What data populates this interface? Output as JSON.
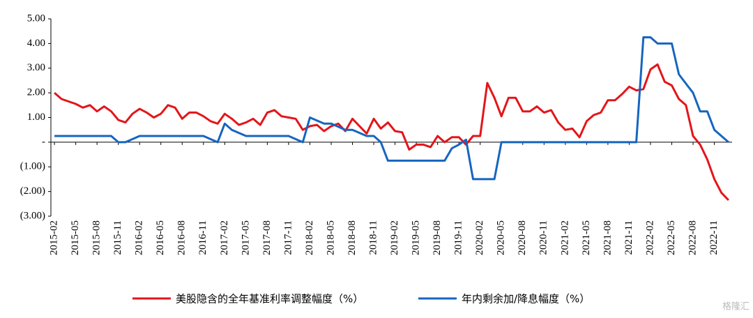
{
  "chart_data": {
    "type": "line",
    "categories": [
      "2015-02",
      null,
      null,
      "2015-05",
      null,
      null,
      "2015-08",
      null,
      null,
      "2015-11",
      null,
      null,
      "2016-02",
      null,
      null,
      "2016-05",
      null,
      null,
      "2016-08",
      null,
      null,
      "2016-11",
      null,
      null,
      "2017-02",
      null,
      null,
      "2017-05",
      null,
      null,
      "2017-08",
      null,
      null,
      "2017-11",
      null,
      null,
      "2018-02",
      null,
      null,
      "2018-05",
      null,
      null,
      "2018-08",
      null,
      null,
      "2018-11",
      null,
      null,
      "2019-02",
      null,
      null,
      "2019-05",
      null,
      null,
      "2019-08",
      null,
      null,
      "2019-11",
      null,
      null,
      "2020-02",
      null,
      null,
      "2020-05",
      null,
      null,
      "2020-08",
      null,
      null,
      "2020-11",
      null,
      null,
      "2021-02",
      null,
      null,
      "2021-05",
      null,
      null,
      "2021-08",
      null,
      null,
      "2021-11",
      null,
      null,
      "2022-02",
      null,
      null,
      "2022-05",
      null,
      null,
      "2022-08",
      null,
      null,
      "2022-11",
      null,
      null
    ],
    "series": [
      {
        "name": "美股隐含的全年基准利率调整幅度（%）",
        "color": "#e3151a",
        "values": [
          2.0,
          1.75,
          1.65,
          1.55,
          1.4,
          1.5,
          1.25,
          1.45,
          1.25,
          0.9,
          0.8,
          1.15,
          1.35,
          1.2,
          1.0,
          1.15,
          1.5,
          1.4,
          0.95,
          1.2,
          1.2,
          1.05,
          0.85,
          0.75,
          1.15,
          0.95,
          0.7,
          0.8,
          0.95,
          0.7,
          1.2,
          1.3,
          1.05,
          1.0,
          0.95,
          0.5,
          0.65,
          0.7,
          0.45,
          0.65,
          0.75,
          0.45,
          0.95,
          0.65,
          0.35,
          0.95,
          0.55,
          0.8,
          0.45,
          0.4,
          -0.3,
          -0.1,
          -0.1,
          -0.2,
          0.25,
          0.0,
          0.2,
          0.2,
          -0.1,
          0.25,
          0.25,
          2.4,
          1.8,
          1.05,
          1.8,
          1.8,
          1.25,
          1.25,
          1.45,
          1.2,
          1.3,
          0.8,
          0.5,
          0.55,
          0.2,
          0.85,
          1.1,
          1.2,
          1.7,
          1.7,
          1.95,
          2.25,
          2.1,
          2.15,
          2.95,
          3.15,
          2.45,
          2.3,
          1.75,
          1.5,
          0.25,
          -0.1,
          -0.7,
          -1.5,
          -2.05,
          -2.35
        ]
      },
      {
        "name": "年内剩余加/降息幅度（%）",
        "color": "#1565c0",
        "values": [
          0.25,
          0.25,
          0.25,
          0.25,
          0.25,
          0.25,
          0.25,
          0.25,
          0.25,
          0.0,
          0.0,
          0.125,
          0.25,
          0.25,
          0.25,
          0.25,
          0.25,
          0.25,
          0.25,
          0.25,
          0.25,
          0.25,
          0.125,
          0.0,
          0.75,
          0.5,
          0.375,
          0.25,
          0.25,
          0.25,
          0.25,
          0.25,
          0.25,
          0.25,
          0.125,
          0.0,
          1.0,
          0.875,
          0.75,
          0.75,
          0.625,
          0.5,
          0.5,
          0.375,
          0.25,
          0.25,
          0.0,
          -0.75,
          -0.75,
          -0.75,
          -0.75,
          -0.75,
          -0.75,
          -0.75,
          -0.75,
          -0.75,
          -0.25,
          -0.1,
          0.1,
          -1.5,
          -1.5,
          -1.5,
          -1.5,
          0.0,
          0.0,
          0.0,
          0.0,
          0.0,
          0.0,
          0.0,
          0.0,
          0.0,
          0.0,
          0.0,
          0.0,
          0.0,
          0.0,
          0.0,
          0.0,
          0.0,
          0.0,
          0.0,
          0.0,
          4.25,
          4.25,
          4.0,
          4.0,
          4.0,
          2.75,
          2.375,
          2.0,
          1.25,
          1.25,
          0.5,
          0.25,
          0.0
        ]
      }
    ],
    "ylim": [
      -3,
      5
    ],
    "yticks": [
      {
        "value": 5,
        "label": "5.00"
      },
      {
        "value": 4,
        "label": "4.00"
      },
      {
        "value": 3,
        "label": "3.00"
      },
      {
        "value": 2,
        "label": "2.00"
      },
      {
        "value": 1,
        "label": "1.00"
      },
      {
        "value": 0,
        "label": "-"
      },
      {
        "value": -1,
        "label": "(1.00)"
      },
      {
        "value": -2,
        "label": "(2.00)"
      },
      {
        "value": -3,
        "label": "(3.00)"
      }
    ],
    "watermark": "格隆汇"
  }
}
